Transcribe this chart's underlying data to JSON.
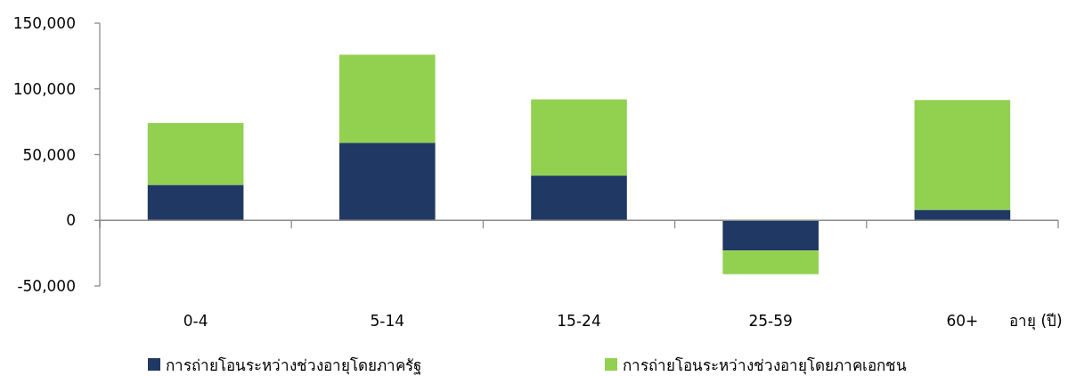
{
  "chart_data": {
    "type": "bar",
    "stacked": true,
    "categories": [
      "0-4",
      "5-14",
      "15-24",
      "25-59",
      "60+"
    ],
    "xlabel": "อายุ (ปี)",
    "series": [
      {
        "name": "การถ่ายโอนระหว่างช่วงอายุโดยภาครัฐ",
        "color": "#203864",
        "values": [
          27000,
          59000,
          34000,
          -23000,
          8000
        ]
      },
      {
        "name": "การถ่ายโอนระหว่างช่วงอายุโดยภาคเอกชน",
        "color": "#92d050",
        "values": [
          47000,
          67000,
          58000,
          -18000,
          83500
        ]
      }
    ],
    "ylim": [
      -50000,
      150000
    ],
    "yticks": [
      {
        "value": -50000,
        "label": "-50,000"
      },
      {
        "value": 0,
        "label": "0"
      },
      {
        "value": 50000,
        "label": "50,000"
      },
      {
        "value": 100000,
        "label": "100,000"
      },
      {
        "value": 150000,
        "label": "150,000"
      }
    ],
    "legend": "bottom"
  }
}
